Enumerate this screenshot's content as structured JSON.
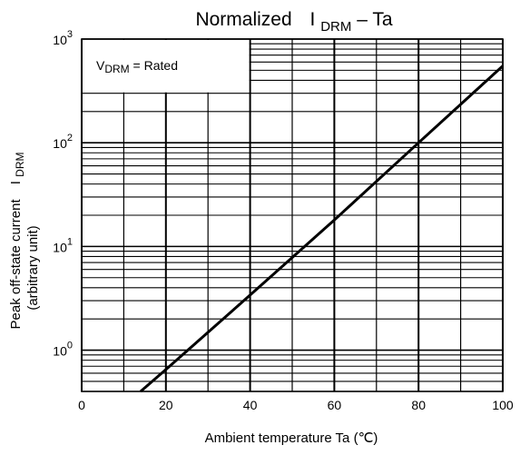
{
  "chart_data": {
    "type": "line",
    "title": {
      "main": "Normalized",
      "symbol": "I",
      "symbol_sub": "DRM",
      "suffix": " – Ta"
    },
    "xlabel": "Ambient temperature   Ta   (℃)",
    "ylabel": {
      "line1": "Peak off-state current",
      "symbol": "I",
      "symbol_sub": "DRM",
      "line2": "(arbitrary unit)"
    },
    "annotation": {
      "symbol": "V",
      "symbol_sub": "DRM",
      "text": " = Rated"
    },
    "x_scale": "linear",
    "y_scale": "log",
    "xlim": [
      0,
      100
    ],
    "ylim": [
      0.4,
      1000
    ],
    "x_ticks": [
      0,
      20,
      40,
      60,
      80,
      100
    ],
    "x_tick_labels": [
      "0",
      "20",
      "40",
      "60",
      "80",
      "100"
    ],
    "y_ticks": [
      {
        "value": 1,
        "base": "10",
        "exp": "0"
      },
      {
        "value": 10,
        "base": "10",
        "exp": "1"
      },
      {
        "value": 100,
        "base": "10",
        "exp": "2"
      },
      {
        "value": 1000,
        "base": "10",
        "exp": "3"
      }
    ],
    "grid": true,
    "series": [
      {
        "x": [
          14,
          20,
          40,
          60,
          80,
          100
        ],
        "y": [
          0.4,
          0.65,
          3.4,
          18,
          100,
          550
        ]
      }
    ],
    "colors": {
      "line": "#000000",
      "grid": "#000000",
      "background": "#ffffff"
    }
  }
}
